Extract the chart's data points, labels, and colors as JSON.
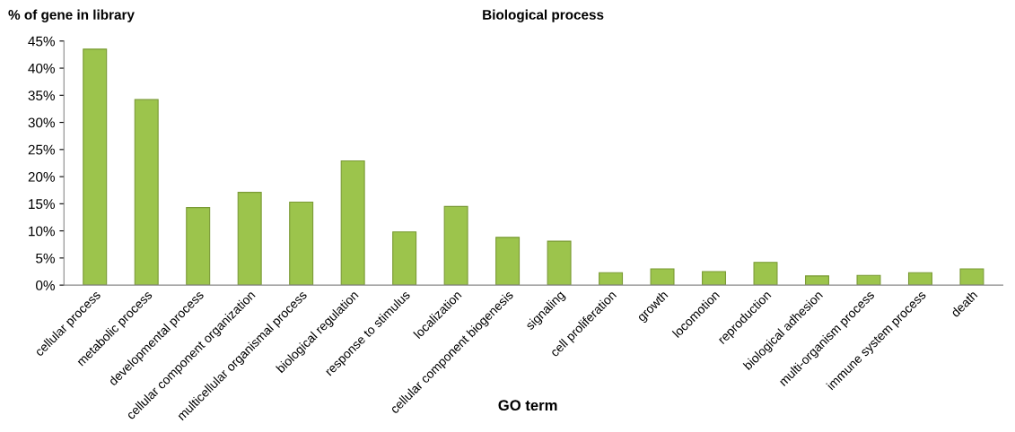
{
  "chart_data": {
    "type": "bar",
    "title": "Biological process",
    "xlabel": "GO term",
    "ylabel": "% of gene in library",
    "categories": [
      "cellular process",
      "metabolic process",
      "developmental process",
      "cellular component organization",
      "multicellular organismal process",
      "biological regulation",
      "response to stimulus",
      "localization",
      "cellular component biogenesis",
      "signaling",
      "cell proliferation",
      "growth",
      "locomotion",
      "reproduction",
      "biological adhesion",
      "multi-organism process",
      "immune system process",
      "death"
    ],
    "values": [
      43.5,
      34.2,
      14.3,
      17.1,
      15.3,
      22.9,
      9.8,
      14.5,
      8.8,
      8.1,
      2.3,
      3.0,
      2.5,
      4.2,
      1.7,
      1.8,
      2.3,
      3.0
    ],
    "color": "#9cc44c",
    "ylim": [
      0,
      45
    ],
    "yticks": [
      {
        "value": 0,
        "label": "0%"
      },
      {
        "value": 5,
        "label": "5%"
      },
      {
        "value": 10,
        "label": "10%"
      },
      {
        "value": 15,
        "label": "15%"
      },
      {
        "value": 20,
        "label": "20%"
      },
      {
        "value": 25,
        "label": "25%"
      },
      {
        "value": 30,
        "label": "30%"
      },
      {
        "value": 35,
        "label": "35%"
      },
      {
        "value": 40,
        "label": "40%"
      },
      {
        "value": 45,
        "label": "45%"
      }
    ],
    "grid": false,
    "legend": false
  }
}
